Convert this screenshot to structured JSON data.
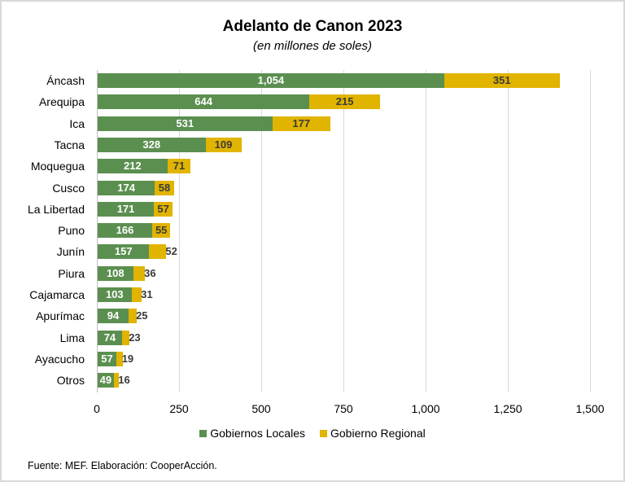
{
  "chart_data": {
    "type": "bar",
    "orientation": "horizontal",
    "stacked": true,
    "title": "Adelanto de Canon 2023",
    "subtitle": "(en millones de soles)",
    "xlabel": "",
    "ylabel": "",
    "xlim": [
      0,
      1500
    ],
    "x_ticks": [
      "0",
      "250",
      "500",
      "750",
      "1,000",
      "1,250",
      "1,500"
    ],
    "grid": true,
    "legend_position": "bottom",
    "categories": [
      "Áncash",
      "Arequipa",
      "Ica",
      "Tacna",
      "Moquegua",
      "Cusco",
      "La Libertad",
      "Puno",
      "Junín",
      "Piura",
      "Cajamarca",
      "Apurímac",
      "Lima",
      "Ayacucho",
      "Otros"
    ],
    "series": [
      {
        "name": "Gobiernos Locales",
        "color": "#5b8f50",
        "values": [
          1054,
          644,
          531,
          328,
          212,
          174,
          171,
          166,
          157,
          108,
          103,
          94,
          74,
          57,
          49
        ],
        "labels": [
          "1,054",
          "644",
          "531",
          "328",
          "212",
          "174",
          "171",
          "166",
          "157",
          "108",
          "103",
          "94",
          "74",
          "57",
          "49"
        ]
      },
      {
        "name": "Gobierno Regional",
        "color": "#e1b400",
        "values": [
          351,
          215,
          177,
          109,
          71,
          58,
          57,
          55,
          52,
          36,
          31,
          25,
          23,
          19,
          16
        ],
        "labels": [
          "351",
          "215",
          "177",
          "109",
          "71",
          "58",
          "57",
          "55",
          "52",
          "36",
          "31",
          "25",
          "23",
          "19",
          "16"
        ]
      }
    ],
    "source": "Fuente: MEF. Elaboración: CooperAcción."
  }
}
